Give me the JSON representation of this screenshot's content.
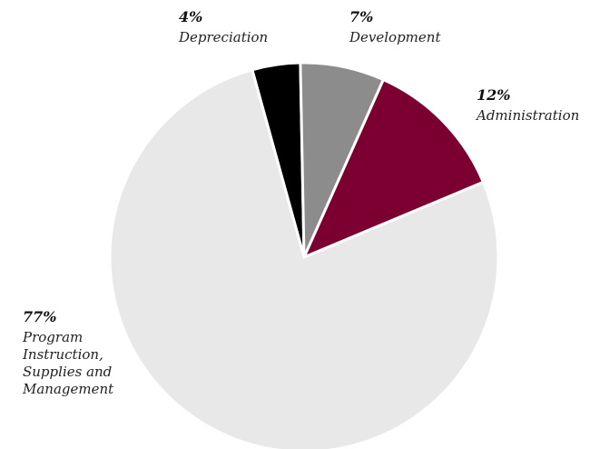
{
  "chart_data": {
    "type": "pie",
    "title": "",
    "slices": [
      {
        "key": "depreciation",
        "label_lines": [
          "Depreciation"
        ],
        "value": 4,
        "value_text": "4%",
        "color": "#000000"
      },
      {
        "key": "development",
        "label_lines": [
          "Development"
        ],
        "value": 7,
        "value_text": "7%",
        "color": "#8c8c8c"
      },
      {
        "key": "administration",
        "label_lines": [
          "Administration"
        ],
        "value": 12,
        "value_text": "12%",
        "color": "#7b0031"
      },
      {
        "key": "program",
        "label_lines": [
          "Program",
          "Instruction,",
          "Supplies and",
          "Management"
        ],
        "value": 77,
        "value_text": "77%",
        "color": "#e8e8e8"
      }
    ]
  }
}
